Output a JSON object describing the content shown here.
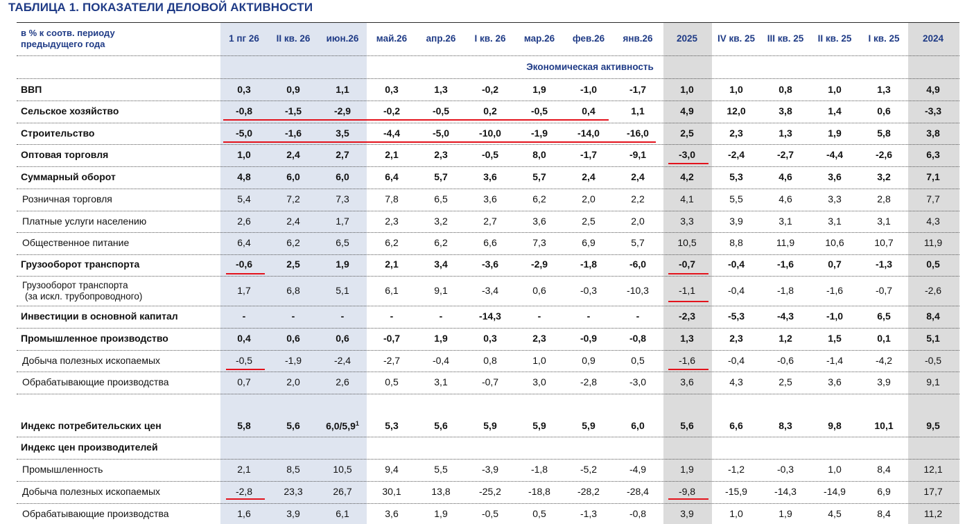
{
  "title": "ТАБЛИЦА 1. ПОКАЗАТЕЛИ ДЕЛОВОЙ АКТИВНОСТИ",
  "unit_line1": "в % к соотв. периоду",
  "unit_line2": "предыдущего года",
  "columns": [
    "1 пг 26",
    "II кв. 26",
    "июн.26",
    "май.26",
    "апр.26",
    "I кв. 26",
    "мар.26",
    "фев.26",
    "янв.26",
    "2025",
    "IV кв. 25",
    "III кв. 25",
    "II кв. 25",
    "I кв. 25",
    "2024"
  ],
  "section_title": "Экономическая активность",
  "colors": {
    "header_blue": "#1f3b86",
    "band_blue": "#dfe5f0",
    "band_gray": "#dcdcdc",
    "underline_red": "#e3121b"
  },
  "rows": [
    {
      "label": "ВВП",
      "bold": true,
      "values": [
        "0,3",
        "0,9",
        "1,1",
        "0,3",
        "1,3",
        "-0,2",
        "1,9",
        "-1,0",
        "-1,7",
        "1,0",
        "1,0",
        "0,8",
        "1,0",
        "1,3",
        "4,9"
      ]
    },
    {
      "label": "Сельское хозяйство",
      "bold": true,
      "values": [
        "-0,8",
        "-1,5",
        "-2,9",
        "-0,2",
        "-0,5",
        "0,2",
        "-0,5",
        "0,4",
        "1,1",
        "4,9",
        "12,0",
        "3,8",
        "1,4",
        "0,6",
        "-3,3"
      ]
    },
    {
      "label": "Строительство",
      "bold": true,
      "values": [
        "-5,0",
        "-1,6",
        "3,5",
        "-4,4",
        "-5,0",
        "-10,0",
        "-1,9",
        "-14,0",
        "-16,0",
        "2,5",
        "2,3",
        "1,3",
        "1,9",
        "5,8",
        "3,8"
      ]
    },
    {
      "label": "Оптовая торговля",
      "bold": true,
      "values": [
        "1,0",
        "2,4",
        "2,7",
        "2,1",
        "2,3",
        "-0,5",
        "8,0",
        "-1,7",
        "-9,1",
        "-3,0",
        "-2,4",
        "-2,7",
        "-4,4",
        "-2,6",
        "6,3"
      ]
    },
    {
      "label": "Суммарный оборот",
      "bold": true,
      "values": [
        "4,8",
        "6,0",
        "6,0",
        "6,4",
        "5,7",
        "3,6",
        "5,7",
        "2,4",
        "2,4",
        "4,2",
        "5,3",
        "4,6",
        "3,6",
        "3,2",
        "7,1"
      ]
    },
    {
      "label": "Розничная торговля",
      "bold": false,
      "values": [
        "5,4",
        "7,2",
        "7,3",
        "7,8",
        "6,5",
        "3,6",
        "6,2",
        "2,0",
        "2,2",
        "4,1",
        "5,5",
        "4,6",
        "3,3",
        "2,8",
        "7,7"
      ]
    },
    {
      "label": "Платные услуги населению",
      "bold": false,
      "values": [
        "2,6",
        "2,4",
        "1,7",
        "2,3",
        "3,2",
        "2,7",
        "3,6",
        "2,5",
        "2,0",
        "3,3",
        "3,9",
        "3,1",
        "3,1",
        "3,1",
        "4,3"
      ]
    },
    {
      "label": "Общественное питание",
      "bold": false,
      "values": [
        "6,4",
        "6,2",
        "6,5",
        "6,2",
        "6,2",
        "6,6",
        "7,3",
        "6,9",
        "5,7",
        "10,5",
        "8,8",
        "11,9",
        "10,6",
        "10,7",
        "11,9"
      ]
    },
    {
      "label": "Грузооборот транспорта",
      "bold": true,
      "values": [
        "-0,6",
        "2,5",
        "1,9",
        "2,1",
        "3,4",
        "-3,6",
        "-2,9",
        "-1,8",
        "-6,0",
        "-0,7",
        "-0,4",
        "-1,6",
        "0,7",
        "-1,3",
        "0,5"
      ]
    },
    {
      "label": "Грузооборот транспорта",
      "label2": "(за искл. трубопроводного)",
      "bold": false,
      "values": [
        "1,7",
        "6,8",
        "5,1",
        "6,1",
        "9,1",
        "-3,4",
        "0,6",
        "-0,3",
        "-10,3",
        "-1,1",
        "-0,4",
        "-1,8",
        "-1,6",
        "-0,7",
        "-2,6"
      ]
    },
    {
      "label": "Инвестиции в основной капитал",
      "bold": true,
      "values": [
        "-",
        "-",
        "-",
        "-",
        "-",
        "-14,3",
        "-",
        "-",
        "-",
        "-2,3",
        "-5,3",
        "-4,3",
        "-1,0",
        "6,5",
        "8,4"
      ]
    },
    {
      "label": "Промышленное производство",
      "bold": true,
      "values": [
        "0,4",
        "0,6",
        "0,6",
        "-0,7",
        "1,9",
        "0,3",
        "2,3",
        "-0,9",
        "-0,8",
        "1,3",
        "2,3",
        "1,2",
        "1,5",
        "0,1",
        "5,1"
      ]
    },
    {
      "label": "Добыча полезных ископаемых",
      "bold": false,
      "values": [
        "-0,5",
        "-1,9",
        "-2,4",
        "-2,7",
        "-0,4",
        "0,8",
        "1,0",
        "0,9",
        "0,5",
        "-1,6",
        "-0,4",
        "-0,6",
        "-1,4",
        "-4,2",
        "-0,5"
      ]
    },
    {
      "label": "Обрабатывающие производства",
      "bold": false,
      "values": [
        "0,7",
        "2,0",
        "2,6",
        "0,5",
        "3,1",
        "-0,7",
        "3,0",
        "-2,8",
        "-3,0",
        "3,6",
        "4,3",
        "2,5",
        "3,6",
        "3,9",
        "9,1"
      ]
    },
    {
      "label": "Индекс потребительских цен",
      "bold": true,
      "values": [
        "5,8",
        "5,6",
        "6,0/5,9",
        "5,3",
        "5,6",
        "5,9",
        "5,9",
        "5,9",
        "6,0",
        "5,6",
        "6,6",
        "8,3",
        "9,8",
        "10,1",
        "9,5"
      ],
      "footnote_col": 2,
      "footnote": "1"
    },
    {
      "label": "Индекс цен производителей",
      "bold": true,
      "values": [
        "",
        "",
        "",
        "",
        "",
        "",
        "",
        "",
        "",
        "",
        "",
        "",
        "",
        "",
        ""
      ]
    },
    {
      "label": "Промышленность",
      "bold": false,
      "values": [
        "2,1",
        "8,5",
        "10,5",
        "9,4",
        "5,5",
        "-3,9",
        "-1,8",
        "-5,2",
        "-4,9",
        "1,9",
        "-1,2",
        "-0,3",
        "1,0",
        "8,4",
        "12,1"
      ]
    },
    {
      "label": "Добыча полезных ископаемых",
      "bold": false,
      "values": [
        "-2,8",
        "23,3",
        "26,7",
        "30,1",
        "13,8",
        "-25,2",
        "-18,8",
        "-28,2",
        "-28,4",
        "-9,8",
        "-15,9",
        "-14,3",
        "-14,9",
        "6,9",
        "17,7"
      ]
    },
    {
      "label": "Обрабатывающие производства",
      "bold": false,
      "values": [
        "1,6",
        "3,9",
        "6,1",
        "3,6",
        "1,9",
        "-0,5",
        "0,5",
        "-1,3",
        "-0,8",
        "3,9",
        "1,0",
        "1,9",
        "4,5",
        "8,4",
        "11,2"
      ]
    }
  ]
}
